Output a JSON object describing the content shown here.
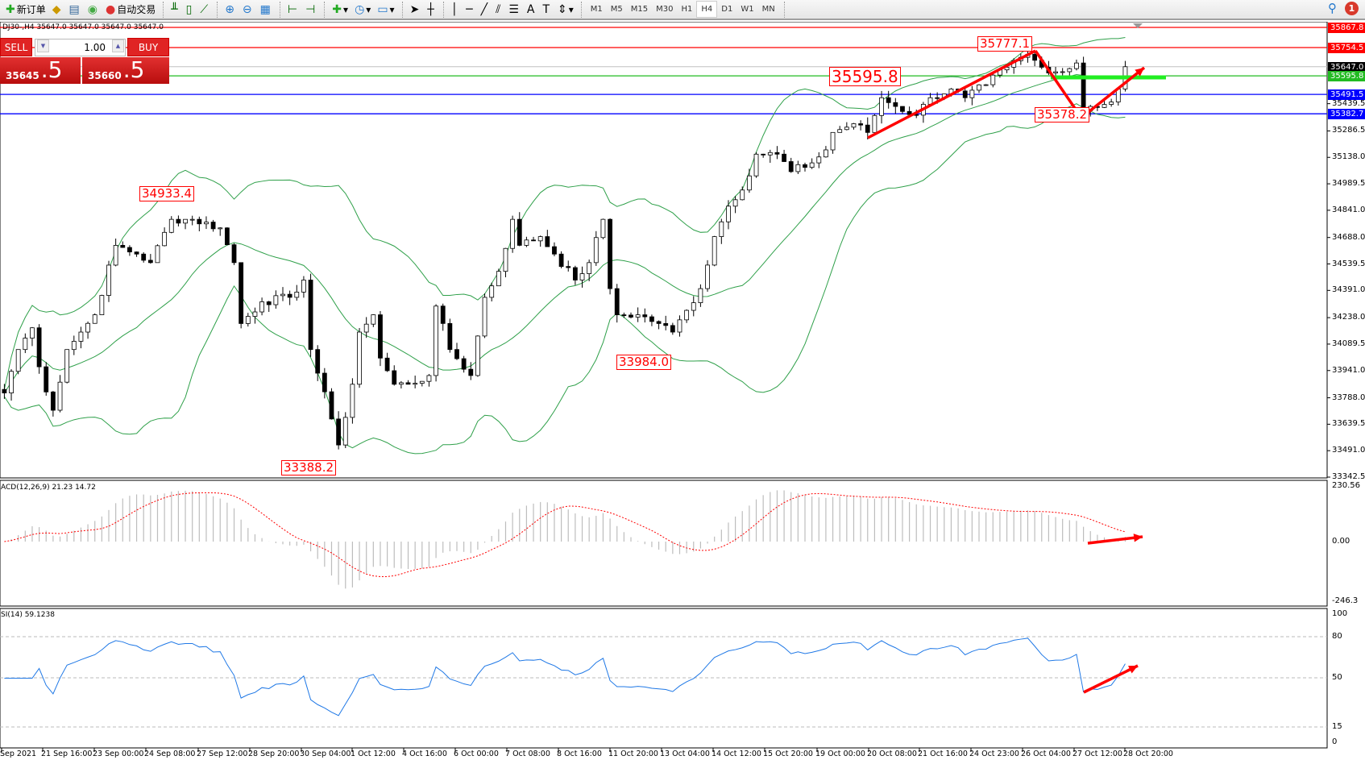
{
  "toolbar": {
    "new_order": "新订单",
    "auto_trading": "自动交易",
    "timeframes": [
      "M1",
      "M5",
      "M15",
      "M30",
      "H1",
      "H4",
      "D1",
      "W1",
      "MN"
    ],
    "active_timeframe": "H4",
    "notifications": "1"
  },
  "header": {
    "text": "DJ30-,H4  35647.0 35647.0 35647.0 35647.0"
  },
  "trade": {
    "sell": "SELL",
    "buy": "BUY",
    "lot": "1.00",
    "bid_main": "35645",
    "bid_big": ".5",
    "ask_main": "35660",
    "ask_big": ".5"
  },
  "price_axis": {
    "ticks": [
      "35286.5",
      "35138.0",
      "34989.5",
      "34841.0",
      "34688.0",
      "34539.5",
      "34391.0",
      "34238.0",
      "34089.5",
      "33941.0",
      "33788.0",
      "33639.5",
      "33491.0",
      "33342.5",
      "35439.5"
    ]
  },
  "levels": [
    {
      "price": "35867.8",
      "color": "#ff0000"
    },
    {
      "price": "35754.5",
      "color": "#ff0000"
    },
    {
      "price": "35647.0",
      "color": "#000000",
      "line": "#c0c0c0"
    },
    {
      "price": "35595.8",
      "color": "#22bb22"
    },
    {
      "price": "35491.5",
      "color": "#0000ff"
    },
    {
      "price": "35382.7",
      "color": "#0000ff"
    }
  ],
  "annotations": [
    "34933.4",
    "33388.2",
    "33984.0",
    "35595.8",
    "35777.1",
    "35378.2"
  ],
  "macd": {
    "title": "ACD(12,26,9) 21.23 14.72",
    "max": "230.56",
    "zero": "0.00",
    "min": "-246.3"
  },
  "rsi": {
    "title": "SI(14) 59.1238",
    "levels": [
      "100",
      "80",
      "50",
      "15",
      "0"
    ]
  },
  "time_axis": [
    "Sep 2021",
    "21 Sep 16:00",
    "23 Sep 00:00",
    "24 Sep 08:00",
    "27 Sep 12:00",
    "28 Sep 20:00",
    "30 Sep 04:00",
    "1 Oct 12:00",
    "4 Oct 16:00",
    "6 Oct 00:00",
    "7 Oct 08:00",
    "8 Oct 16:00",
    "11 Oct 20:00",
    "13 Oct 04:00",
    "14 Oct 12:00",
    "15 Oct 20:00",
    "19 Oct 00:00",
    "20 Oct 08:00",
    "21 Oct 16:00",
    "24 Oct 23:00",
    "26 Oct 04:00",
    "27 Oct 12:00",
    "28 Oct 20:00"
  ],
  "chart_data": {
    "type": "candlestick",
    "symbol": "DJ30-",
    "timeframe": "H4",
    "ylim": [
      33342.5,
      35867.8
    ],
    "swing_closes": [
      [
        0,
        33815
      ],
      [
        2,
        34059
      ],
      [
        4,
        34181
      ],
      [
        5,
        33962
      ],
      [
        7,
        33718
      ],
      [
        9,
        34059
      ],
      [
        11,
        34157
      ],
      [
        13,
        34254
      ],
      [
        16,
        34644
      ],
      [
        19,
        34595
      ],
      [
        21,
        34547
      ],
      [
        24,
        34790
      ],
      [
        27,
        34790
      ],
      [
        31,
        34742
      ],
      [
        33,
        34547
      ],
      [
        34,
        34205
      ],
      [
        37,
        34327
      ],
      [
        41,
        34352
      ],
      [
        43,
        34449
      ],
      [
        44,
        34059
      ],
      [
        47,
        33669
      ],
      [
        48,
        33523
      ],
      [
        50,
        33864
      ],
      [
        51,
        34157
      ],
      [
        53,
        34254
      ],
      [
        54,
        34011
      ],
      [
        56,
        33864
      ],
      [
        58,
        33864
      ],
      [
        61,
        33913
      ],
      [
        62,
        34303
      ],
      [
        64,
        34059
      ],
      [
        67,
        33913
      ],
      [
        69,
        34352
      ],
      [
        71,
        34498
      ],
      [
        73,
        34790
      ],
      [
        74,
        34644
      ],
      [
        77,
        34693
      ],
      [
        79,
        34595
      ],
      [
        82,
        34449
      ],
      [
        84,
        34547
      ],
      [
        86,
        34790
      ],
      [
        87,
        34401
      ],
      [
        88,
        34254
      ],
      [
        91,
        34254
      ],
      [
        94,
        34205
      ],
      [
        96,
        34157
      ],
      [
        98,
        34279
      ],
      [
        100,
        34401
      ],
      [
        102,
        34693
      ],
      [
        104,
        34864
      ],
      [
        107,
        35034
      ],
      [
        108,
        35156
      ],
      [
        111,
        35156
      ],
      [
        113,
        35058
      ],
      [
        116,
        35107
      ],
      [
        118,
        35180
      ],
      [
        119,
        35278
      ],
      [
        122,
        35327
      ],
      [
        124,
        35278
      ],
      [
        126,
        35473
      ],
      [
        128,
        35424
      ],
      [
        131,
        35375
      ],
      [
        133,
        35473
      ],
      [
        136,
        35522
      ],
      [
        138,
        35473
      ],
      [
        141,
        35546
      ],
      [
        144,
        35644
      ],
      [
        147,
        35717
      ],
      [
        149,
        35644
      ],
      [
        152,
        35619
      ],
      [
        154,
        35668
      ],
      [
        155,
        35400
      ],
      [
        156,
        35424
      ],
      [
        159,
        35449
      ],
      [
        160,
        35522
      ],
      [
        161,
        35647
      ]
    ]
  }
}
